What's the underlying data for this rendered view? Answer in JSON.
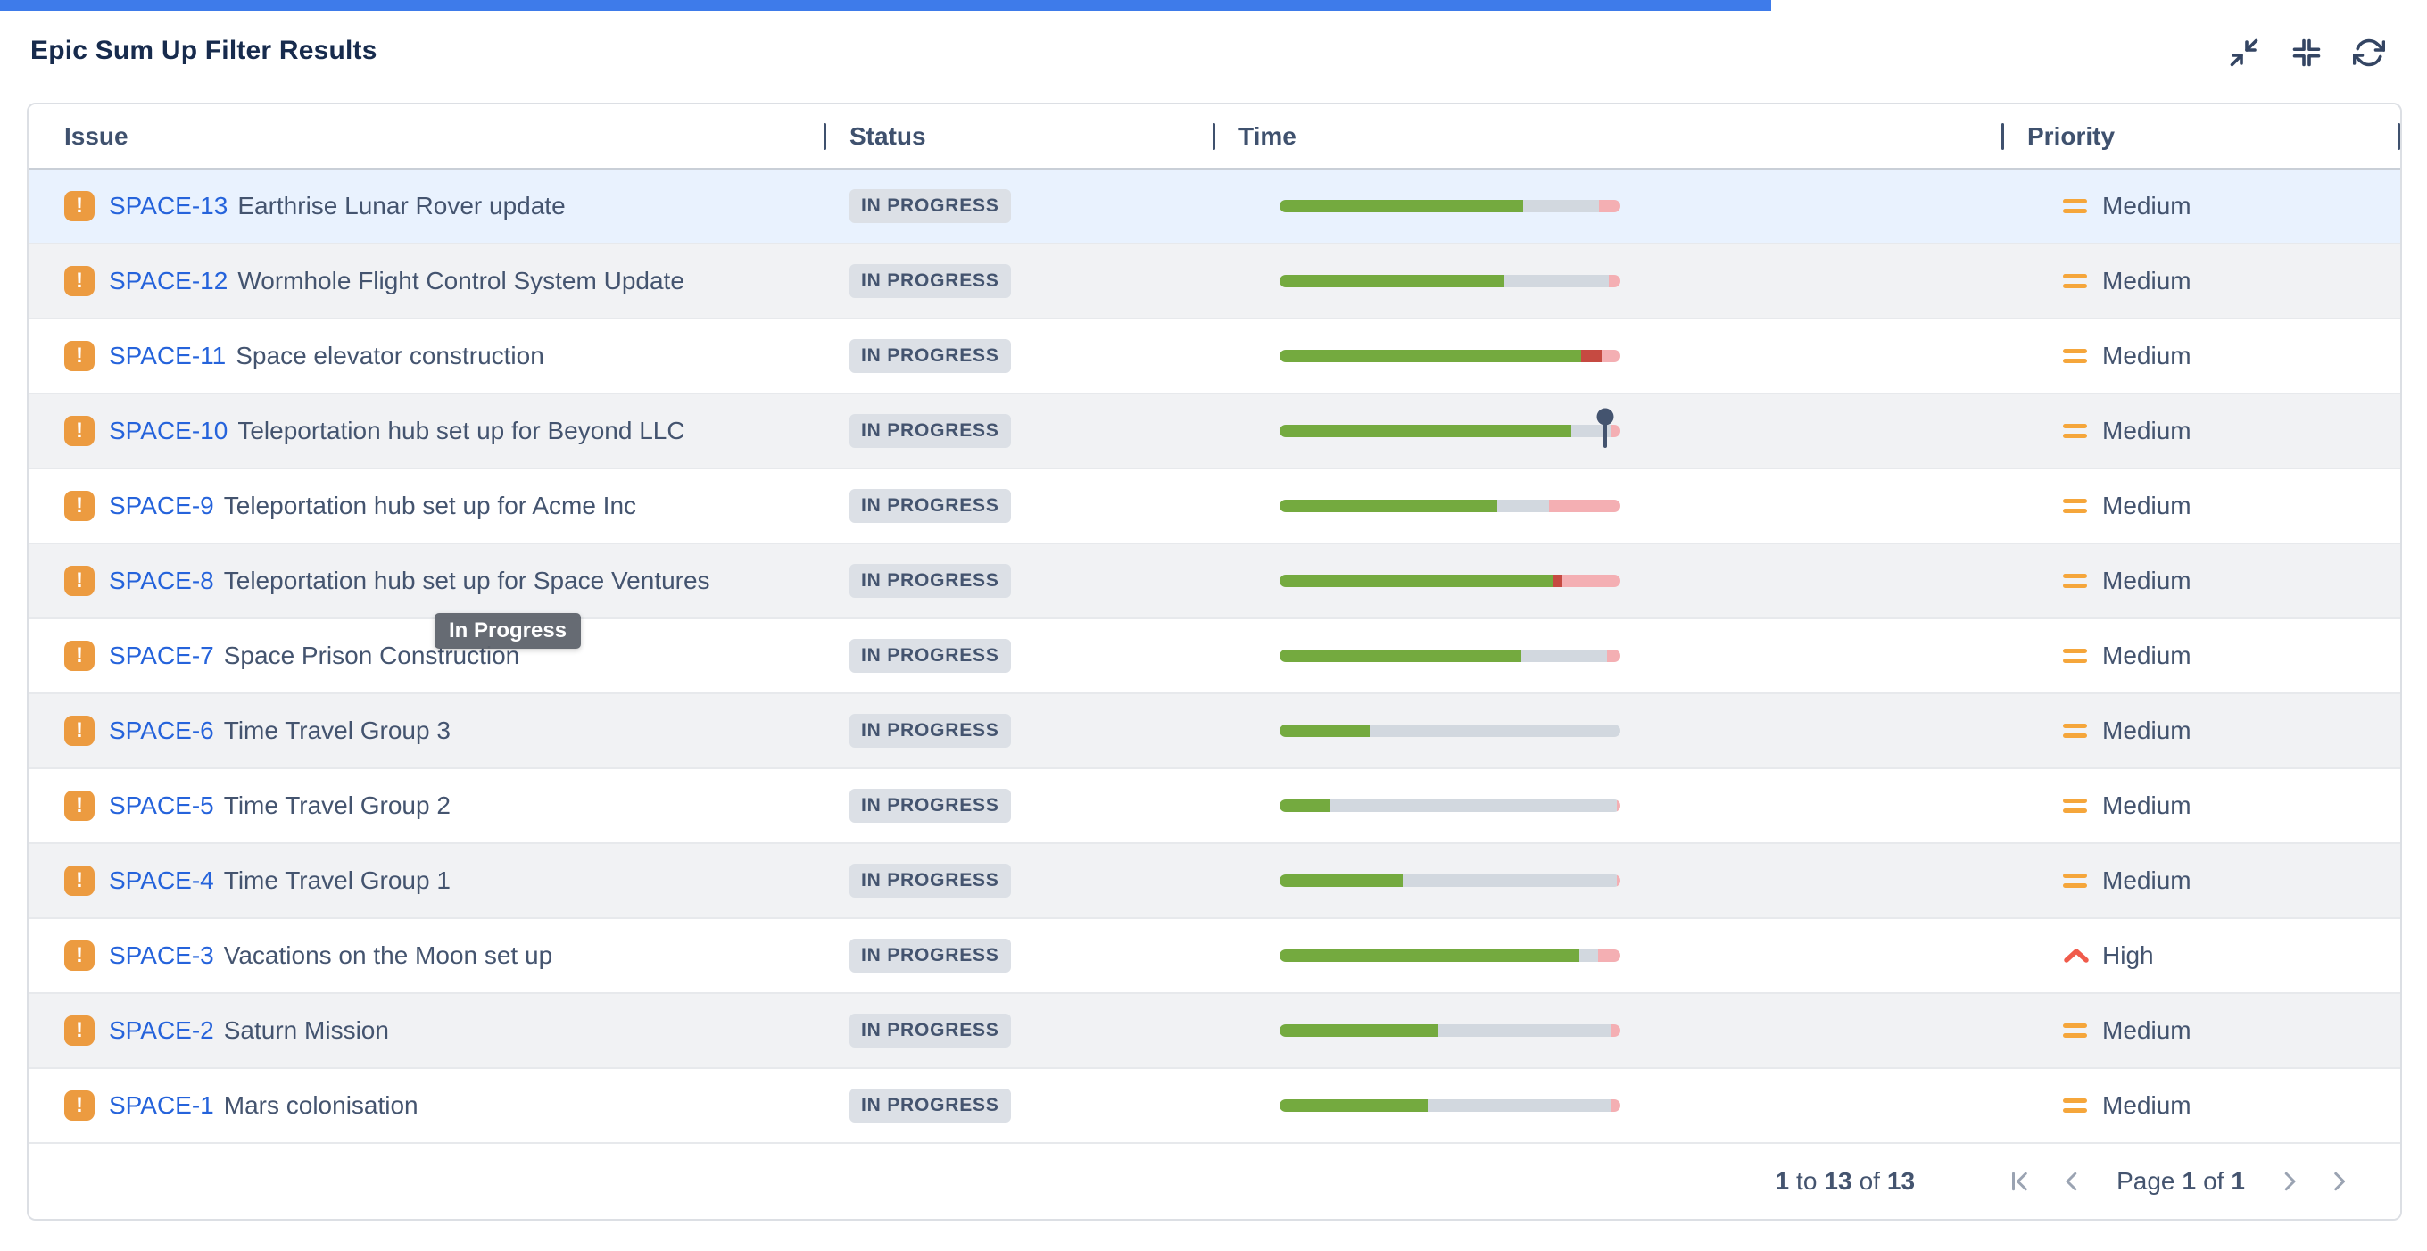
{
  "page": {
    "title": "Epic Sum Up Filter Results"
  },
  "toolbar": {
    "icons": [
      {
        "name": "collapse-icon"
      },
      {
        "name": "collapse-all-icon"
      },
      {
        "name": "refresh-icon"
      }
    ]
  },
  "table": {
    "columns": [
      "Issue",
      "Status",
      "Time",
      "Priority"
    ],
    "epic_icon_glyph": "!",
    "rows": [
      {
        "key": "SPACE-13",
        "summary": "Earthrise Lunar Rover update",
        "status": "IN PROGRESS",
        "priority": "Medium",
        "highlighted": true,
        "time_segments": [
          {
            "type": "green",
            "pct": 71.5
          },
          {
            "type": "gray",
            "pct": 22.2
          },
          {
            "type": "pink",
            "pct": 6.3
          }
        ]
      },
      {
        "key": "SPACE-12",
        "summary": "Wormhole Flight Control System Update",
        "status": "IN PROGRESS",
        "priority": "Medium",
        "time_segments": [
          {
            "type": "green",
            "pct": 66
          },
          {
            "type": "gray",
            "pct": 30.5
          },
          {
            "type": "pink",
            "pct": 3.5
          }
        ]
      },
      {
        "key": "SPACE-11",
        "summary": "Space elevator construction",
        "status": "IN PROGRESS",
        "priority": "Medium",
        "time_segments": [
          {
            "type": "green",
            "pct": 88.5
          },
          {
            "type": "red",
            "pct": 6
          },
          {
            "type": "pink",
            "pct": 5.5
          }
        ]
      },
      {
        "key": "SPACE-10",
        "summary": "Teleportation hub set up for Beyond LLC",
        "status": "IN PROGRESS",
        "priority": "Medium",
        "time_segments": [
          {
            "type": "green",
            "pct": 85.5
          },
          {
            "type": "gray",
            "pct": 12
          },
          {
            "type": "pink",
            "pct": 2.5
          }
        ],
        "marker_pct": 95.5
      },
      {
        "key": "SPACE-9",
        "summary": "Teleportation hub set up for Acme Inc",
        "status": "IN PROGRESS",
        "priority": "Medium",
        "time_segments": [
          {
            "type": "green",
            "pct": 64
          },
          {
            "type": "gray",
            "pct": 15
          },
          {
            "type": "pink",
            "pct": 21
          }
        ]
      },
      {
        "key": "SPACE-8",
        "summary": "Teleportation hub set up for Space Ventures",
        "status": "IN PROGRESS",
        "priority": "Medium",
        "time_segments": [
          {
            "type": "green",
            "pct": 80
          },
          {
            "type": "red",
            "pct": 3
          },
          {
            "type": "pink",
            "pct": 17
          }
        ]
      },
      {
        "key": "SPACE-7",
        "summary": "Space Prison Construction",
        "status": "IN PROGRESS",
        "priority": "Medium",
        "time_segments": [
          {
            "type": "green",
            "pct": 71
          },
          {
            "type": "gray",
            "pct": 25
          },
          {
            "type": "pink",
            "pct": 4
          }
        ]
      },
      {
        "key": "SPACE-6",
        "summary": "Time Travel Group 3",
        "status": "IN PROGRESS",
        "priority": "Medium",
        "time_segments": [
          {
            "type": "green",
            "pct": 26.5
          },
          {
            "type": "gray",
            "pct": 73.5
          }
        ]
      },
      {
        "key": "SPACE-5",
        "summary": "Time Travel Group 2",
        "status": "IN PROGRESS",
        "priority": "Medium",
        "time_segments": [
          {
            "type": "green",
            "pct": 15
          },
          {
            "type": "gray",
            "pct": 84
          },
          {
            "type": "pink",
            "pct": 1
          }
        ]
      },
      {
        "key": "SPACE-4",
        "summary": "Time Travel Group 1",
        "status": "IN PROGRESS",
        "priority": "Medium",
        "time_segments": [
          {
            "type": "green",
            "pct": 36
          },
          {
            "type": "gray",
            "pct": 63
          },
          {
            "type": "pink",
            "pct": 1
          }
        ]
      },
      {
        "key": "SPACE-3",
        "summary": "Vacations on the Moon set up",
        "status": "IN PROGRESS",
        "priority": "High",
        "time_segments": [
          {
            "type": "green",
            "pct": 88
          },
          {
            "type": "gray",
            "pct": 5.5
          },
          {
            "type": "pink",
            "pct": 6.5
          }
        ]
      },
      {
        "key": "SPACE-2",
        "summary": "Saturn Mission",
        "status": "IN PROGRESS",
        "priority": "Medium",
        "time_segments": [
          {
            "type": "green",
            "pct": 46.5
          },
          {
            "type": "gray",
            "pct": 50.5
          },
          {
            "type": "pink",
            "pct": 3
          }
        ]
      },
      {
        "key": "SPACE-1",
        "summary": "Mars colonisation",
        "status": "IN PROGRESS",
        "priority": "Medium",
        "time_segments": [
          {
            "type": "green",
            "pct": 43.5
          },
          {
            "type": "gray",
            "pct": 54
          },
          {
            "type": "pink",
            "pct": 2.5
          }
        ]
      }
    ]
  },
  "tooltip": {
    "text": "In Progress"
  },
  "pagination": {
    "from": "1",
    "to_word": "to",
    "to": "13",
    "of_word": "of",
    "total": "13",
    "page_word": "Page",
    "page": "1",
    "page_of_word": "of",
    "page_total": "1",
    "icons": [
      "first-page-icon",
      "previous-page-icon",
      "next-page-icon",
      "last-page-icon"
    ]
  },
  "colors": {
    "top_bar": "#3E7BEA",
    "title_text": "#172B4D",
    "body_text": "#44546F",
    "link_blue": "#2563DB",
    "epic_orange": "#EC9B40",
    "badge_bg": "#DCE0E6",
    "row_highlight": "#E9F2FE",
    "row_zebra": "#F1F2F4",
    "card_border": "#DCDFE4",
    "priority_medium": "#F5A63B",
    "priority_high": "#F05B4B",
    "bar": {
      "green": "#74AA3F",
      "gray": "#D2D8DF",
      "red": "#C64A41",
      "pink": "#F4AFB3",
      "marker": "#44546F"
    }
  }
}
